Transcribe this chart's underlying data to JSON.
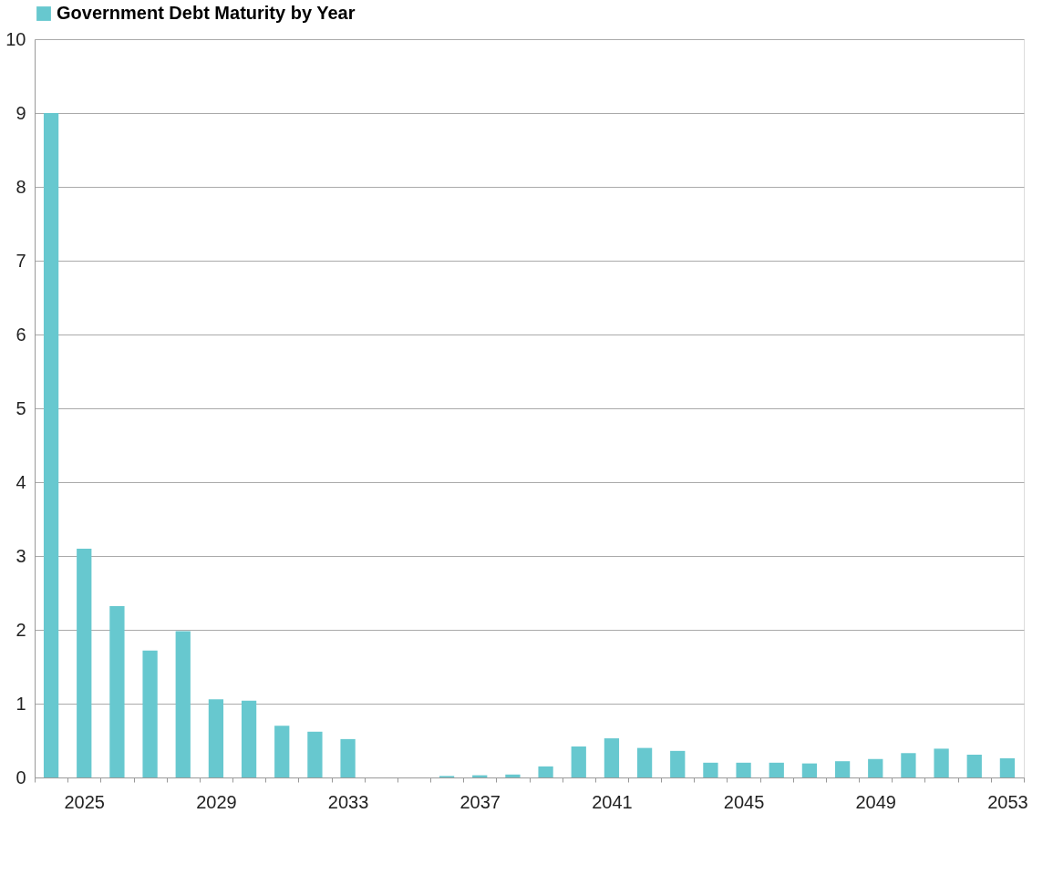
{
  "chart_data": {
    "type": "bar",
    "categories": [
      null,
      "2025",
      null,
      null,
      null,
      "2029",
      null,
      null,
      null,
      "2033",
      null,
      null,
      null,
      "2037",
      null,
      null,
      null,
      "2041",
      null,
      null,
      null,
      "2045",
      null,
      null,
      null,
      "2049",
      null,
      null,
      null,
      "2053"
    ],
    "series": [
      {
        "name": "Government Debt Maturity by Year",
        "color": "#67c8cf",
        "values": [
          9.0,
          3.1,
          2.32,
          1.72,
          1.98,
          1.06,
          1.04,
          0.7,
          0.62,
          0.52,
          0,
          0,
          0.02,
          0.03,
          0.04,
          0.15,
          0.42,
          0.53,
          0.4,
          0.36,
          0.2,
          0.2,
          0.2,
          0.19,
          0.22,
          0.25,
          0.33,
          0.39,
          0.31,
          0.26
        ]
      }
    ],
    "ylim": [
      0,
      10
    ],
    "yticks": [
      0,
      1,
      2,
      3,
      4,
      5,
      6,
      7,
      8,
      9,
      10
    ],
    "grid": "y",
    "legend": "top"
  }
}
